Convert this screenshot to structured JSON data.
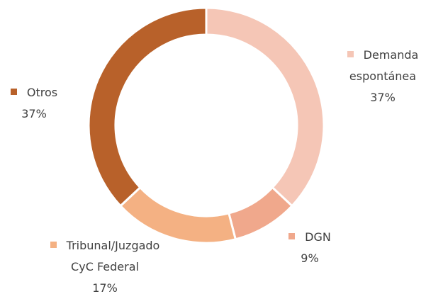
{
  "chart_data": {
    "type": "donut",
    "categories": [
      "Demanda espontánea",
      "DGN",
      "Tribunal/Juzgado CyC Federal",
      "Otros"
    ],
    "values": [
      37,
      9,
      17,
      37
    ],
    "value_labels": [
      "37%",
      "9%",
      "17%",
      "37%"
    ],
    "colors": [
      "#f5c6b6",
      "#f0a88c",
      "#f4b183",
      "#b8612a"
    ]
  }
}
